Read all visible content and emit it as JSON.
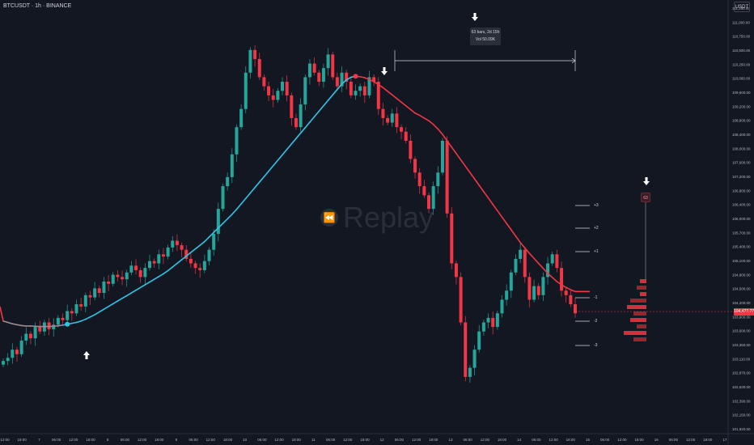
{
  "header": {
    "symbol": "BTCUSDT · 1h · BINANCE",
    "currency": "USDT"
  },
  "watermark": {
    "text": "Replay",
    "icon": "replay-icon"
  },
  "measure_tooltip": {
    "line1": "63 bars, 2d 15h",
    "line2": "Vol 50.09K"
  },
  "bar_count_badge": "63",
  "level_labels": [
    "+3",
    "+2",
    "+1",
    "-1",
    "-2",
    "-3"
  ],
  "last_price_label": "104,4??.??",
  "colors": {
    "up": "#26a69a",
    "down": "#f23645",
    "ma_rising": "#2ec6e6",
    "ma_falling": "#f23645",
    "ma_flat": "#9e8a90",
    "background": "#131722"
  },
  "chart_data": {
    "type": "candlestick",
    "symbol": "BTCUSDT",
    "timeframe": "1h",
    "exchange": "BINANCE",
    "y_axis_ticks": [
      "111,250.00",
      "111,000.00",
      "110,750.00",
      "110,500.00",
      "110,250.00",
      "110,000.00",
      "109,600.00",
      "109,200.00",
      "108,800.00",
      "108,400.00",
      "108,000.00",
      "107,600.00",
      "107,200.00",
      "106,800.00",
      "106,400.00",
      "106,000.00",
      "105,700.00",
      "105,400.00",
      "105,100.00",
      "104,800.00",
      "104,500.00",
      "104,200.00",
      "103,900.00",
      "103,600.00",
      "103,350.00",
      "103,110.00",
      "102,870.00",
      "102,630.00",
      "102,390.00",
      "102,150.00",
      "101,920.00"
    ],
    "x_axis_ticks": [
      "12:00",
      "18:00",
      "7",
      "06:00",
      "12:00",
      "18:00",
      "8",
      "06:00",
      "12:00",
      "18:00",
      "9",
      "06:00",
      "12:00",
      "18:00",
      "10",
      "06:00",
      "12:00",
      "18:00",
      "11",
      "06:00",
      "12:00",
      "18:00",
      "12",
      "06:00",
      "12:00",
      "18:00",
      "13",
      "06:00",
      "12:00",
      "18:00",
      "14",
      "06:00",
      "12:00",
      "18:00",
      "15",
      "06:00",
      "12:00",
      "18:00",
      "16",
      "06:00",
      "12:00",
      "18:00",
      "17"
    ],
    "close_series": [
      103450,
      103520,
      103700,
      103600,
      103900,
      104050,
      103950,
      104200,
      104100,
      104300,
      104150,
      104250,
      104400,
      104350,
      104550,
      104500,
      104700,
      104650,
      104900,
      104850,
      105050,
      104950,
      105200,
      105150,
      105350,
      105300,
      105250,
      105400,
      105550,
      105450,
      105300,
      105500,
      105650,
      105600,
      105800,
      105750,
      105950,
      106100,
      106000,
      105900,
      105700,
      105600,
      105500,
      105450,
      105650,
      105900,
      106250,
      106800,
      107300,
      107500,
      108000,
      108600,
      109000,
      109800,
      110300,
      110100,
      109700,
      109500,
      109300,
      109200,
      109400,
      109600,
      109300,
      108800,
      108600,
      109100,
      109700,
      110000,
      109800,
      109600,
      109900,
      110200,
      109700,
      109500,
      109800,
      109600,
      109300,
      109400,
      109500,
      109300,
      109700,
      109600,
      109000,
      108800,
      108700,
      108900,
      108600,
      108500,
      108300,
      107900,
      107600,
      107300,
      107100,
      106800,
      107300,
      107600,
      108300,
      106700,
      105600,
      105300,
      104300,
      103100,
      103300,
      103700,
      104100,
      104300,
      104400,
      104200,
      104500,
      104800,
      105000,
      105400,
      105700,
      105900,
      105300,
      104800,
      105100,
      104900,
      105300,
      105600,
      105800,
      105500,
      105000,
      104900,
      104700,
      104500
    ],
    "ma_series": [
      104330,
      104300,
      104270,
      104250,
      104230,
      104220,
      104220,
      104215,
      104210,
      104210,
      104210,
      104215,
      104225,
      104240,
      104260,
      104280,
      104300,
      104330,
      104370,
      104420,
      104470,
      104530,
      104590,
      104650,
      104710,
      104770,
      104830,
      104890,
      104950,
      105010,
      105070,
      105130,
      105190,
      105250,
      105310,
      105370,
      105440,
      105520,
      105600,
      105680,
      105760,
      105840,
      105920,
      106000,
      106080,
      106180,
      106280,
      106380,
      106480,
      106580,
      106680,
      106790,
      106910,
      107030,
      107150,
      107270,
      107390,
      107510,
      107630,
      107750,
      107870,
      107990,
      108110,
      108230,
      108350,
      108470,
      108590,
      108710,
      108830,
      108950,
      109070,
      109190,
      109310,
      109430,
      109550,
      109640,
      109700,
      109720,
      109710,
      109690,
      109650,
      109600,
      109540,
      109470,
      109390,
      109310,
      109230,
      109150,
      109070,
      108990,
      108910,
      108860,
      108800,
      108740,
      108660,
      108560,
      108440,
      108300,
      108160,
      108020,
      107880,
      107740,
      107600,
      107460,
      107320,
      107180,
      107040,
      106900,
      106760,
      106620,
      106480,
      106340,
      106200,
      106060,
      105940,
      105820,
      105710,
      105600,
      105490,
      105380,
      105290,
      105200,
      105130,
      105070,
      105020,
      104980
    ],
    "measure_range": {
      "bars": 63,
      "duration": "2d 15h",
      "volume": "50.09K"
    },
    "signals": [
      {
        "type": "buy",
        "label": "up-arrow"
      },
      {
        "type": "sell",
        "label": "down-arrow"
      },
      {
        "type": "marker",
        "label": "down-arrow"
      }
    ],
    "levels": [
      "+3",
      "+2",
      "+1",
      "-1",
      "-2",
      "-3"
    ],
    "volume_profile_bins": [
      2,
      3,
      2,
      5,
      6,
      4,
      5,
      3,
      7,
      4
    ],
    "grid": false
  }
}
